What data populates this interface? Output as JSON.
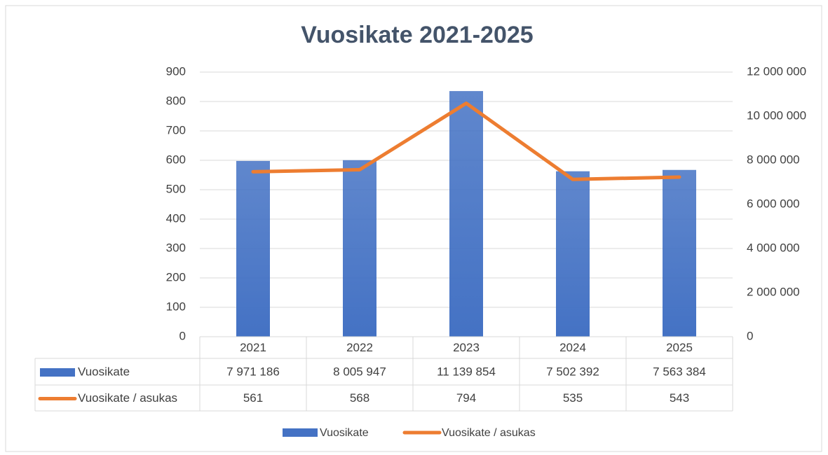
{
  "chart_data": {
    "type": "bar",
    "title": "Vuosikate 2021-2025",
    "categories": [
      "2021",
      "2022",
      "2023",
      "2024",
      "2025"
    ],
    "series": [
      {
        "name": "Vuosikate",
        "type": "bar",
        "axis": "y2",
        "color": "#4472c4",
        "values": [
          7971186,
          8005947,
          11139854,
          7502392,
          7563384
        ],
        "value_labels": [
          "7 971 186",
          "8 005 947",
          "11 139 854",
          "7 502 392",
          "7 563 384"
        ]
      },
      {
        "name": "Vuosikate / asukas",
        "type": "line",
        "axis": "y",
        "color": "#ed7d31",
        "values": [
          561,
          568,
          794,
          535,
          543
        ]
      }
    ],
    "ylim": [
      0,
      900
    ],
    "yticks": [
      0,
      100,
      200,
      300,
      400,
      500,
      600,
      700,
      800,
      900
    ],
    "y2lim": [
      0,
      12000000
    ],
    "y2ticks": [
      0,
      {
        "value": 2000000,
        "label": "2 000 000"
      },
      {
        "value": 4000000,
        "label": "4 000 000"
      },
      {
        "value": 6000000,
        "label": "6 000 000"
      },
      {
        "value": 8000000,
        "label": "8 000 000"
      },
      {
        "value": 10000000,
        "label": "10 000 000"
      },
      {
        "value": 12000000,
        "label": "12 000 000"
      }
    ],
    "grid": true,
    "legend": "bottom",
    "data_table": true
  }
}
